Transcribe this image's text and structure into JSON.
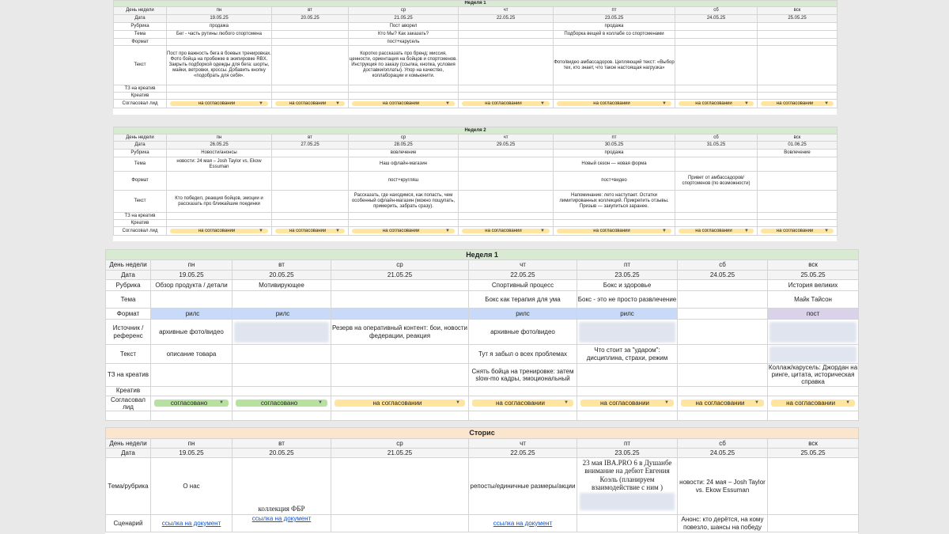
{
  "days": [
    "пн",
    "вт",
    "ср",
    "чт",
    "пт",
    "сб",
    "вск"
  ],
  "labels": {
    "day": "День недели",
    "date": "Дата",
    "rubric": "Рубрика",
    "theme": "Тема",
    "format": "Формат",
    "text": "Текст",
    "tz": "ТЗ на креатив",
    "creative": "Креатив",
    "approval": "Согласовал лид",
    "source": "Источник / референс",
    "theme_rubric": "Тема/рубрика",
    "scenario": "Сценарий"
  },
  "status": {
    "pending": "на согласовании",
    "approved": "согласовано"
  },
  "week1_top": {
    "title": "Неделя 1",
    "dates": [
      "19.05.25",
      "20.05.25",
      "21.05.25",
      "22.05.25",
      "23.05.25",
      "24.05.25",
      "25.05.25"
    ],
    "rubric": [
      "продажа",
      "",
      "Пост аворел",
      "",
      "продажа",
      "",
      ""
    ],
    "theme": [
      "Бег - часть рутины любого спортсмена",
      "",
      "Кто Мы? Как заказать?",
      "",
      "Подборка вещей в коллабе со спортсменами",
      "",
      ""
    ],
    "format": [
      "",
      "",
      "пост+карусель",
      "",
      "",
      "",
      ""
    ],
    "text": [
      "Пост про важность бега в боевых тренировках. Фото бойца на пробежке в экипировке RBX. Закрыть подборкой одежды для бега: шорты, майки, ветровки, кроссы. Добавить кнопку «подобрать для себя».",
      "",
      "Коротко рассказать про бренд: миссия, ценности, ориентация на бойцов и спортсменов. Инструкция по заказу (ссылка, кнопка, условия доставки/оплаты). Упор на качество, коллаборации и комьюнити.",
      "",
      "Фото/видео амбассадоров. Цепляющий текст: «Выбор тех, кто знает, что такое настоящая нагрузка»",
      "",
      ""
    ]
  },
  "week2_top": {
    "title": "Неделя 2",
    "dates": [
      "26.05.25",
      "27.05.25",
      "28.05.25",
      "29.05.25",
      "30.05.25",
      "31.05.25",
      "01.06.25"
    ],
    "rubric": [
      "Новости/анонсы",
      "",
      "вовлечение",
      "",
      "продажа",
      "",
      "Вовлечение"
    ],
    "theme": [
      "новости: 24 мая – Josh Taylor vs. Ekow Essuman",
      "",
      "Наш офлайн-магазин",
      "",
      "Новый сезон — новая форма",
      "",
      ""
    ],
    "format": [
      "",
      "",
      "пост+кругляш",
      "",
      "пост+видео",
      "Привет от амбассадоров/спортсменов (по возможности)",
      ""
    ],
    "text": [
      "Кто победил, реакция бойцов, эмоции и рассказать про ближайшие поединки",
      "",
      "Рассказать, где находимся, как попасть, чем особенный офлайн-магазин (можно пощупать, примерить, забрать сразу).",
      "",
      "Напоминание: лето наступает. Остатки лимитированных коллекций. Прикрепить отзывы. Призыв — закупиться заранее.",
      "",
      ""
    ]
  },
  "week1_bottom": {
    "title": "Неделя 1",
    "dates": [
      "19.05.25",
      "20.05.25",
      "21.05.25",
      "22.05.25",
      "23.05.25",
      "24.05.25",
      "25.05.25"
    ],
    "rubric": [
      "Обзор продукта / детали",
      "Мотивирующее",
      "",
      "Спортивный процесс",
      "Бокс и здоровье",
      "",
      "История великих"
    ],
    "theme": [
      "",
      "",
      "",
      "Бокс как терапия для ума",
      "Бокс - это не просто развлечение",
      "",
      "Майк Тайсон"
    ],
    "format": [
      "рилс",
      "рилс",
      "",
      "рилс",
      "рилс",
      "",
      "пост"
    ],
    "source": [
      "архивные фото/видео",
      "",
      "Резерв на оперативный контент: бои, новости федерации, реакция",
      "архивные фото/видео",
      "",
      "",
      ""
    ],
    "text": [
      "описание товара",
      "",
      "",
      "Тут я забыл о всех проблемах",
      "Что стоит за \"ударом\": дисциплина, страхи, режим",
      "",
      ""
    ],
    "tz": [
      "",
      "",
      "",
      "Снять бойца на тренировке: затем slow-mo кадры, эмоциональный",
      "",
      "",
      "Коллаж/карусель: Джордан на ринге, цитата, историческая справка"
    ]
  },
  "stories": {
    "title": "Сторис",
    "dates": [
      "19.05.25",
      "20.05.25",
      "21.05.25",
      "22.05.25",
      "23.05.25",
      "24.05.25",
      "25.05.25"
    ],
    "theme": [
      "О нас",
      "коллекция ФБР",
      "",
      "репосты/единичные размеры/акции",
      "23 мая IBA.PRO 6 в Душанбе внимание на дебют Евгения Коэль (планируем взаимодействие с ним )",
      "новости: 24 мая – Josh Taylor vs. Ekow Essuman",
      ""
    ],
    "scenario": [
      "ссылка на документ",
      "ссылка на документ",
      "",
      "ссылка на документ",
      "",
      "Анонс: кто дерётся, на кому повезло, шансы на победу",
      ""
    ]
  }
}
